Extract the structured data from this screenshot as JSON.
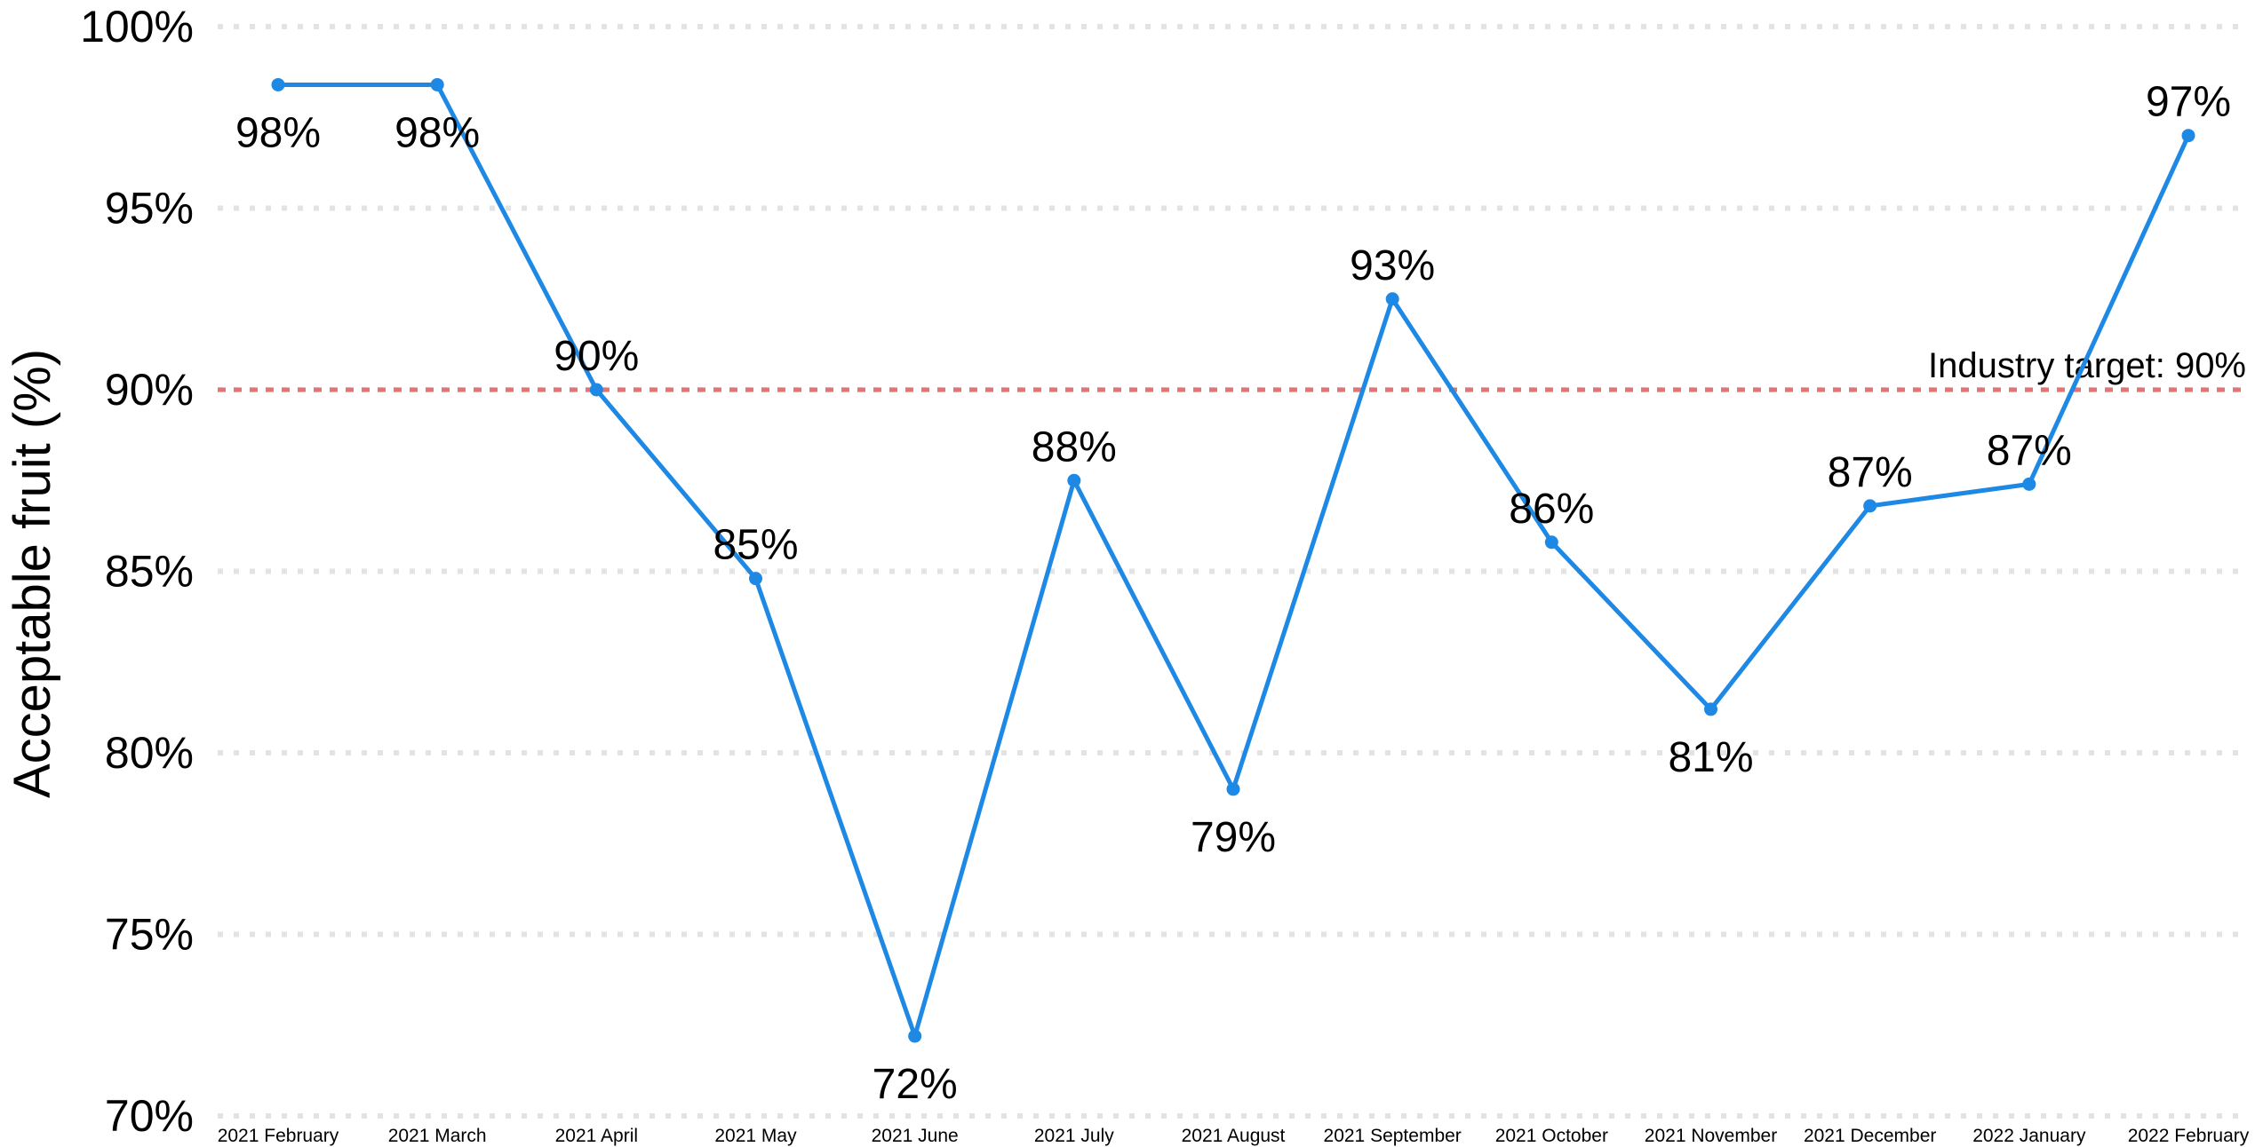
{
  "chart_data": {
    "type": "line",
    "title": "",
    "xlabel": "",
    "ylabel": "Acceptable fruit (%)",
    "ylim": [
      70,
      100
    ],
    "y_ticks": [
      "70%",
      "75%",
      "80%",
      "85%",
      "90%",
      "95%",
      "100%"
    ],
    "grid": "horizontal-dotted",
    "categories": [
      "2021 February",
      "2021 March",
      "2021 April",
      "2021 May",
      "2021 June",
      "2021 July",
      "2021 August",
      "2021 September",
      "2021 October",
      "2021 November",
      "2021 December",
      "2022 January",
      "2022 February"
    ],
    "series": [
      {
        "color": "#1E88E5",
        "values": [
          98.4,
          98.4,
          90.0,
          84.8,
          72.2,
          87.5,
          79.0,
          92.5,
          85.8,
          81.2,
          86.8,
          87.4,
          97.0
        ],
        "labels": [
          "98%",
          "98%",
          "90%",
          "85%",
          "72%",
          "88%",
          "79%",
          "93%",
          "86%",
          "81%",
          "87%",
          "87%",
          "97%"
        ],
        "label_positions": [
          "below",
          "below",
          "above",
          "above",
          "below",
          "above",
          "below",
          "above",
          "above",
          "below",
          "above",
          "above",
          "above"
        ]
      }
    ],
    "reference_line": {
      "value": 90,
      "label": "Industry target: 90%",
      "color": "#E57373",
      "style": "dashed"
    }
  }
}
